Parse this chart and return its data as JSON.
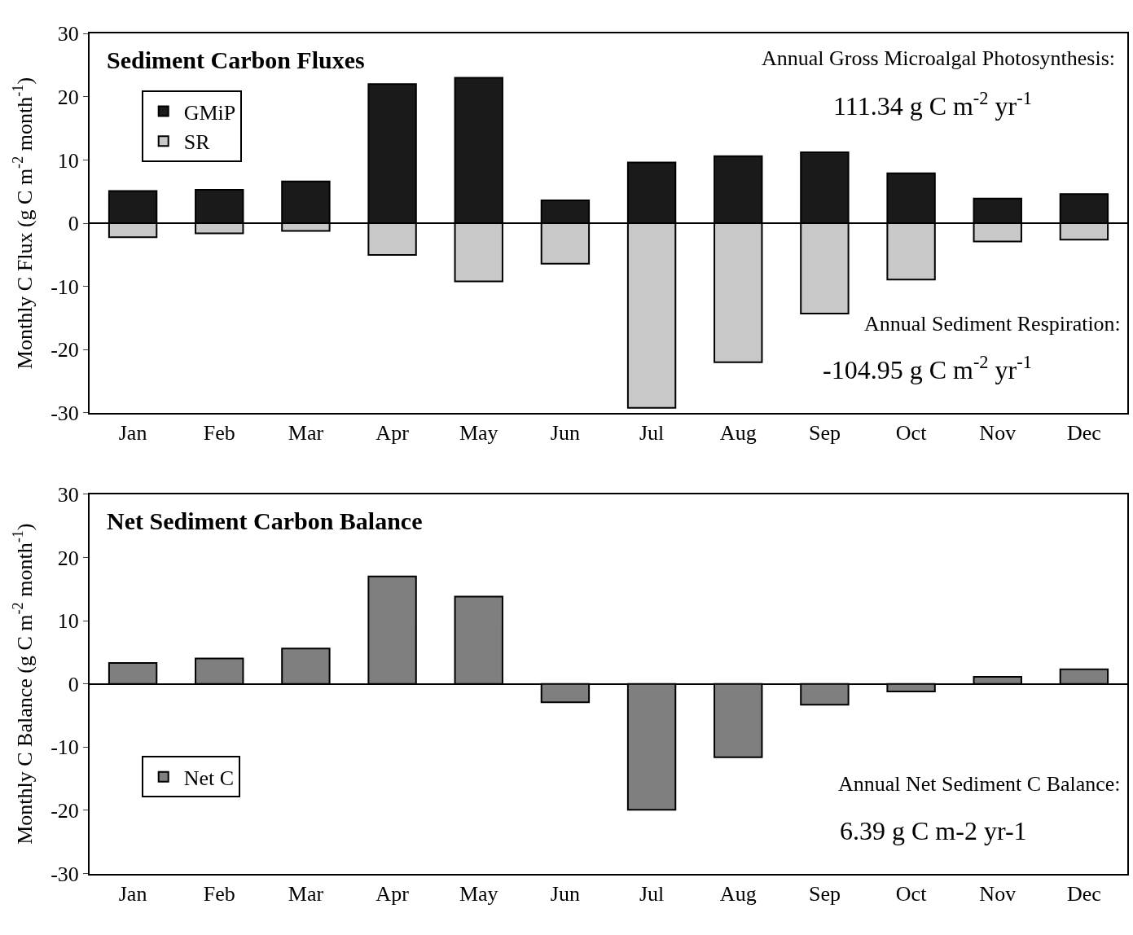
{
  "chart_data": [
    {
      "type": "bar",
      "title": "Sediment Carbon Fluxes",
      "ylabel": "Monthly C Flux (g C m$^{-2}$ month$^{-1}$)",
      "categories": [
        "Jan",
        "Feb",
        "Mar",
        "Apr",
        "May",
        "Jun",
        "Jul",
        "Aug",
        "Sep",
        "Oct",
        "Nov",
        "Dec"
      ],
      "series": [
        {
          "name": "GMiP",
          "color": "#1a1a1a",
          "values": [
            5.1,
            5.3,
            6.6,
            22.0,
            23.0,
            3.6,
            9.6,
            10.6,
            11.2,
            7.9,
            3.9,
            4.6
          ]
        },
        {
          "name": "SR",
          "color": "#c8c8c8",
          "values": [
            -2.2,
            -1.6,
            -1.2,
            -5.0,
            -9.2,
            -6.4,
            -29.2,
            -22.0,
            -14.3,
            -8.9,
            -2.9,
            -2.6
          ]
        }
      ],
      "stacked": true,
      "ylim": [
        -30,
        30
      ],
      "yticks": [
        -30,
        -20,
        -10,
        0,
        10,
        20,
        30
      ],
      "legend": "top left",
      "annotations": [
        "Annual Gross Microalgal Photosynthesis:",
        "111.34 g C m$^{-2}$ yr$^{-1}$",
        "Annual Sediment Respiration:",
        "-104.95 g C m$^{-2}$ yr$^{-1}$"
      ]
    },
    {
      "type": "bar",
      "title": "Net Sediment Carbon Balance",
      "ylabel": "Monthly C Balance (g C m$^{-2}$ month$^{-1}$)",
      "categories": [
        "Jan",
        "Feb",
        "Mar",
        "Apr",
        "May",
        "Jun",
        "Jul",
        "Aug",
        "Sep",
        "Oct",
        "Nov",
        "Dec"
      ],
      "series": [
        {
          "name": "Net C",
          "color": "#7f7f7f",
          "values": [
            3.3,
            4.0,
            5.6,
            17.0,
            13.8,
            -2.9,
            -19.9,
            -11.6,
            -3.3,
            -1.2,
            1.1,
            2.3
          ]
        }
      ],
      "ylim": [
        -30,
        30
      ],
      "yticks": [
        -30,
        -20,
        -10,
        0,
        10,
        20,
        30
      ],
      "legend": "bottom left",
      "annotations": [
        "Annual Net Sediment C Balance:",
        "6.39 g C m-2 yr-1"
      ]
    }
  ]
}
